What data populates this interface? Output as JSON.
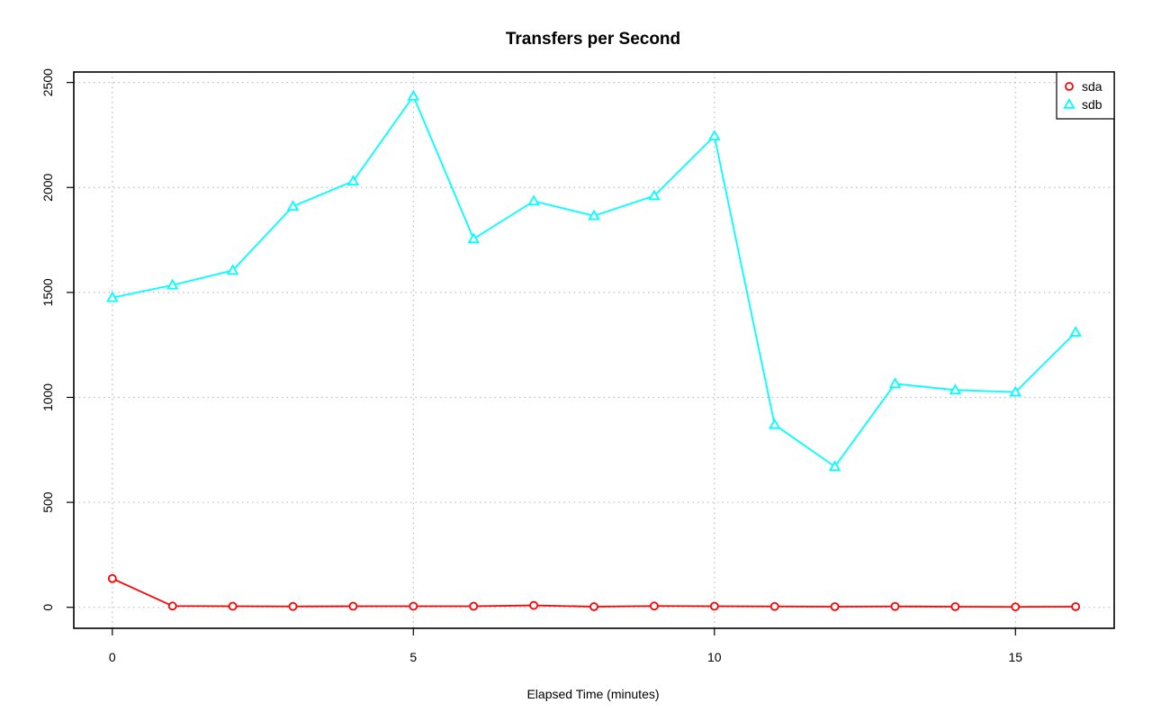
{
  "chart_data": {
    "type": "line",
    "title": "Transfers per Second",
    "xlabel": "Elapsed Time (minutes)",
    "ylabel": "",
    "x": [
      0,
      1,
      2,
      3,
      4,
      5,
      6,
      7,
      8,
      9,
      10,
      11,
      12,
      13,
      14,
      15,
      16
    ],
    "xlim": [
      -0.64,
      16.64
    ],
    "ylim": [
      -100,
      2550
    ],
    "xticks": [
      0,
      5,
      10,
      15
    ],
    "yticks": [
      0,
      500,
      1000,
      1500,
      2000,
      2500
    ],
    "xtick_labels": [
      "0",
      "5",
      "10",
      "15"
    ],
    "ytick_labels": [
      "0",
      "500",
      "1000",
      "1500",
      "2000",
      "2500"
    ],
    "grid": true,
    "legend_position": "top-right",
    "series": [
      {
        "name": "sda",
        "marker": "circle",
        "color": "#ff0000",
        "values": [
          137,
          6,
          5,
          4,
          5,
          5,
          5,
          9,
          3,
          6,
          5,
          4,
          3,
          4,
          3,
          2,
          3
        ]
      },
      {
        "name": "sdb",
        "marker": "triangle",
        "color": "#00ffff",
        "values": [
          1475,
          1535,
          1605,
          1910,
          2030,
          2435,
          1755,
          1935,
          1865,
          1960,
          2245,
          870,
          670,
          1065,
          1035,
          1025,
          1310
        ]
      }
    ]
  }
}
